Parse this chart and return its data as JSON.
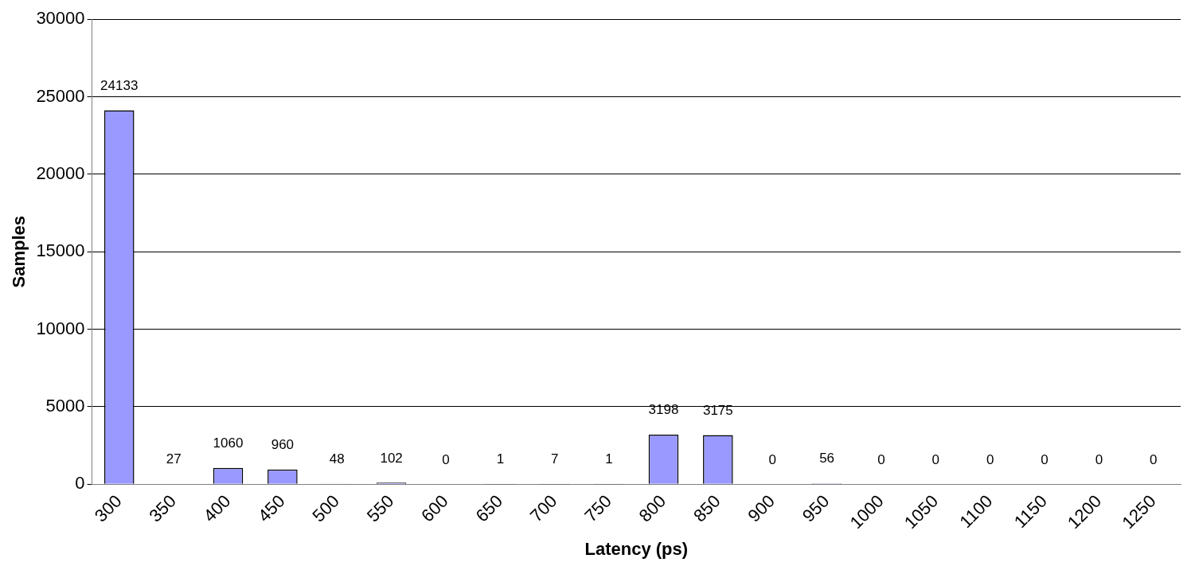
{
  "chart_data": {
    "type": "bar",
    "xlabel": "Latency (ps)",
    "ylabel": "Samples",
    "categories": [
      "300",
      "350",
      "400",
      "450",
      "500",
      "550",
      "600",
      "650",
      "700",
      "750",
      "800",
      "850",
      "900",
      "950",
      "1000",
      "1050",
      "1100",
      "1150",
      "1200",
      "1250"
    ],
    "values": [
      24133,
      27,
      1060,
      960,
      48,
      102,
      0,
      1,
      7,
      1,
      3198,
      3175,
      0,
      56,
      0,
      0,
      0,
      0,
      0,
      0
    ],
    "color": "#9999ff",
    "ylim": [
      0,
      30000
    ],
    "yticks": [
      0,
      5000,
      10000,
      15000,
      20000,
      25000,
      30000
    ],
    "grid": "y",
    "data_labels": true,
    "legend": false
  }
}
